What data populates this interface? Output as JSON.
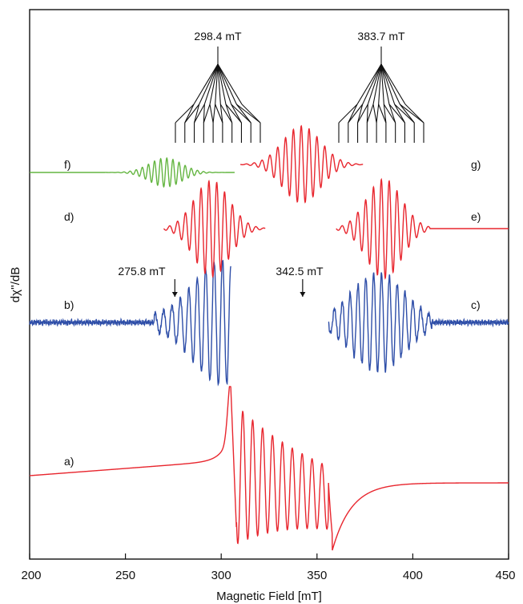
{
  "chart_data": {
    "type": "line",
    "title": "",
    "xlabel": "Magnetic Field [mT]",
    "ylabel": "dχ''/dB",
    "xlim": [
      200,
      450
    ],
    "x_ticks": [
      200,
      250,
      300,
      350,
      400,
      450
    ],
    "x_tick_labels": [
      "200",
      "250",
      "300",
      "350",
      "400",
      "450"
    ],
    "y_ticks_shown": false,
    "grid": false,
    "legend": "none",
    "colors": {
      "experimental": "#e8262e",
      "simulated_subspectra": "#e8262e",
      "expanded_experimental": "#2e4ea8",
      "simulated_low_field": "#64b541",
      "axes": "#111111"
    },
    "panels": [
      {
        "label": "a)",
        "color": "#e8262e",
        "x_range": [
          200,
          450
        ],
        "description_shown": false
      },
      {
        "label": "b)",
        "color": "#2e4ea8",
        "x_range": [
          200,
          305
        ]
      },
      {
        "label": "c)",
        "color": "#2e4ea8",
        "x_range": [
          355,
          450
        ]
      },
      {
        "label": "d)",
        "color": "#e8262e",
        "x_range": [
          270,
          325
        ]
      },
      {
        "label": "e)",
        "color": "#e8262e",
        "x_range": [
          360,
          450
        ]
      },
      {
        "label": "f)",
        "color": "#64b541",
        "x_range": [
          200,
          307
        ]
      },
      {
        "label": "g)",
        "color": "#e8262e",
        "x_range": [
          310,
          374
        ]
      }
    ],
    "annotations": [
      {
        "text": "298.4 mT",
        "x": 298.4,
        "type": "splitting-tree",
        "branches": 10
      },
      {
        "text": "383.7 mT",
        "x": 383.7,
        "type": "splitting-tree",
        "branches": 10
      },
      {
        "text": "275.8 mT",
        "x": 275.8,
        "type": "arrow"
      },
      {
        "text": "342.5 mT",
        "x": 342.5,
        "type": "arrow"
      }
    ]
  }
}
